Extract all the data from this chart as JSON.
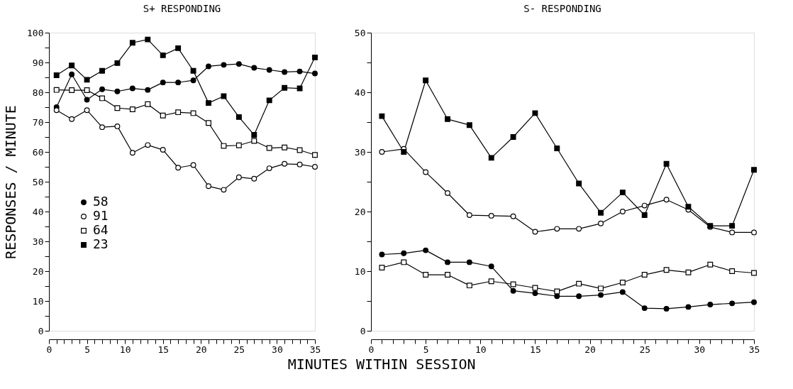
{
  "chart_data": [
    {
      "type": "line",
      "title": "S+ RESPONDING",
      "xlabel": "MINUTES WITHIN SESSION",
      "ylabel": "RESPONSES / MINUTE",
      "legend": "bottom left",
      "line_style": "solid",
      "grid": false,
      "x": [
        1,
        3,
        5,
        7,
        9,
        11,
        13,
        15,
        17,
        19,
        21,
        23,
        25,
        27,
        29,
        31,
        33,
        35
      ],
      "xlim": [
        0,
        35
      ],
      "ylim": [
        0,
        100
      ],
      "xticks": [
        0,
        {
          "value": 1,
          "label": null
        },
        {
          "value": 2,
          "label": null
        },
        {
          "value": 3,
          "label": null
        },
        {
          "value": 4,
          "label": null
        },
        5,
        {
          "value": 6,
          "label": null
        },
        {
          "value": 7,
          "label": null
        },
        {
          "value": 8,
          "label": null
        },
        {
          "value": 9,
          "label": null
        },
        10,
        {
          "value": 11,
          "label": null
        },
        {
          "value": 12,
          "label": null
        },
        {
          "value": 13,
          "label": null
        },
        {
          "value": 14,
          "label": null
        },
        15,
        {
          "value": 16,
          "label": null
        },
        {
          "value": 17,
          "label": null
        },
        {
          "value": 18,
          "label": null
        },
        {
          "value": 19,
          "label": null
        },
        20,
        {
          "value": 21,
          "label": null
        },
        {
          "value": 22,
          "label": null
        },
        {
          "value": 23,
          "label": null
        },
        {
          "value": 24,
          "label": null
        },
        25,
        {
          "value": 26,
          "label": null
        },
        {
          "value": 27,
          "label": null
        },
        {
          "value": 28,
          "label": null
        },
        {
          "value": 29,
          "label": null
        },
        30,
        {
          "value": 31,
          "label": null
        },
        {
          "value": 32,
          "label": null
        },
        {
          "value": 33,
          "label": null
        },
        {
          "value": 34,
          "label": null
        },
        35
      ],
      "yticks": [
        0,
        {
          "value": 5,
          "label": null
        },
        10,
        {
          "value": 15,
          "label": null
        },
        20,
        {
          "value": 25,
          "label": null
        },
        30,
        {
          "value": 35,
          "label": null
        },
        40,
        {
          "value": 45,
          "label": null
        },
        50,
        {
          "value": 55,
          "label": null
        },
        60,
        {
          "value": 65,
          "label": null
        },
        70,
        {
          "value": 75,
          "label": null
        },
        80,
        {
          "value": 85,
          "label": null
        },
        90,
        {
          "value": 95,
          "label": null
        },
        100
      ],
      "series": [
        {
          "name": "58",
          "color": "#000000",
          "marker": "circle",
          "values": [
            75,
            86,
            77.5,
            81,
            80.3,
            81.3,
            80.8,
            83.3,
            83.3,
            84,
            88.7,
            89.2,
            89.5,
            88.2,
            87.5,
            86.8,
            87,
            86.3
          ]
        },
        {
          "name": "91",
          "color": "#ffffff",
          "marker": "circle",
          "values": [
            74,
            71,
            74,
            68.3,
            68.6,
            59.7,
            62.3,
            60.7,
            54.7,
            55.6,
            48.5,
            47.3,
            51.5,
            51,
            54.5,
            56,
            55.8,
            55
          ]
        },
        {
          "name": "64",
          "color": "#ffffff",
          "marker": "square",
          "values": [
            80.8,
            80.7,
            80.7,
            78,
            74.7,
            74.3,
            76,
            72.2,
            73.3,
            73,
            69.7,
            62,
            62.2,
            63.7,
            61.3,
            61.5,
            60.6,
            59
          ]
        },
        {
          "name": "23",
          "color": "#000000",
          "marker": "square",
          "values": [
            85.7,
            89,
            84.2,
            87.2,
            89.8,
            96.6,
            97.7,
            92.4,
            94.8,
            87.2,
            76.4,
            78.7,
            71.7,
            65.7,
            77.3,
            81.5,
            81.3,
            91.7
          ]
        }
      ]
    },
    {
      "type": "line",
      "title": "S- RESPONDING",
      "legend": false,
      "line_style": "solid",
      "grid": false,
      "x": [
        1,
        3,
        5,
        7,
        9,
        11,
        13,
        15,
        17,
        19,
        21,
        23,
        25,
        27,
        29,
        31,
        33,
        35
      ],
      "xlim": [
        0,
        35
      ],
      "ylim": [
        0,
        50
      ],
      "xticks": [
        0,
        {
          "value": 1,
          "label": null
        },
        {
          "value": 2,
          "label": null
        },
        {
          "value": 3,
          "label": null
        },
        {
          "value": 4,
          "label": null
        },
        5,
        {
          "value": 6,
          "label": null
        },
        {
          "value": 7,
          "label": null
        },
        {
          "value": 8,
          "label": null
        },
        {
          "value": 9,
          "label": null
        },
        10,
        {
          "value": 11,
          "label": null
        },
        {
          "value": 12,
          "label": null
        },
        {
          "value": 13,
          "label": null
        },
        {
          "value": 14,
          "label": null
        },
        15,
        {
          "value": 16,
          "label": null
        },
        {
          "value": 17,
          "label": null
        },
        {
          "value": 18,
          "label": null
        },
        {
          "value": 19,
          "label": null
        },
        20,
        {
          "value": 21,
          "label": null
        },
        {
          "value": 22,
          "label": null
        },
        {
          "value": 23,
          "label": null
        },
        {
          "value": 24,
          "label": null
        },
        25,
        {
          "value": 26,
          "label": null
        },
        {
          "value": 27,
          "label": null
        },
        {
          "value": 28,
          "label": null
        },
        {
          "value": 29,
          "label": null
        },
        30,
        {
          "value": 31,
          "label": null
        },
        {
          "value": 32,
          "label": null
        },
        {
          "value": 33,
          "label": null
        },
        {
          "value": 34,
          "label": null
        },
        35
      ],
      "yticks": [
        0,
        {
          "value": 5,
          "label": null
        },
        10,
        {
          "value": 15,
          "label": null
        },
        20,
        {
          "value": 25,
          "label": null
        },
        30,
        {
          "value": 35,
          "label": null
        },
        40,
        {
          "value": 45,
          "label": null
        },
        50
      ],
      "series": [
        {
          "color": "#000000",
          "marker": "circle",
          "values": [
            12.8,
            13,
            13.5,
            11.5,
            11.5,
            10.8,
            6.7,
            6.3,
            5.8,
            5.8,
            6,
            6.5,
            3.8,
            3.7,
            4,
            4.4,
            4.6,
            4.8
          ]
        },
        {
          "color": "#ffffff",
          "marker": "circle",
          "values": [
            30,
            30.5,
            26.6,
            23.1,
            19.4,
            19.3,
            19.2,
            16.6,
            17.1,
            17.1,
            18,
            20,
            21,
            22,
            20.3,
            17.4,
            16.5,
            16.5
          ]
        },
        {
          "color": "#ffffff",
          "marker": "square",
          "values": [
            10.6,
            11.5,
            9.4,
            9.4,
            7.6,
            8.3,
            7.8,
            7.2,
            6.6,
            7.9,
            7.1,
            8.1,
            9.4,
            10.2,
            9.8,
            11.1,
            10,
            9.7
          ]
        },
        {
          "color": "#000000",
          "marker": "square",
          "values": [
            36,
            30,
            42,
            35.5,
            34.5,
            29,
            32.5,
            36.5,
            30.6,
            24.7,
            19.8,
            23.2,
            19.4,
            28,
            20.8,
            17.6,
            17.6,
            27
          ]
        }
      ]
    }
  ]
}
